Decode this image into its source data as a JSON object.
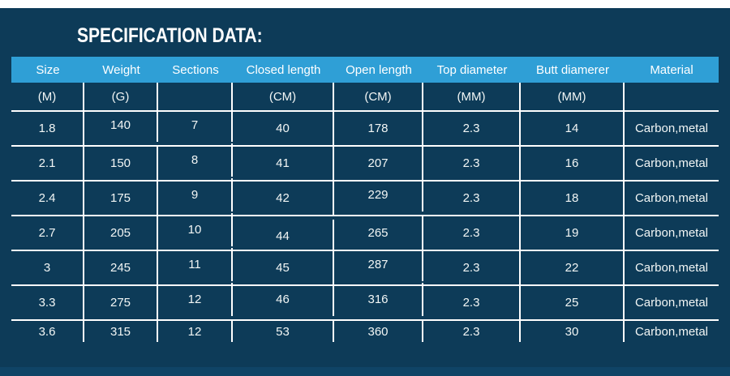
{
  "title": "SPECIFICATION DATA:",
  "colors": {
    "page_background": "#0d3b58",
    "top_strip": "#ffffff",
    "bottom_strip": "#0f4466",
    "header_background": "#2f9fd6",
    "grid_line": "#ffffff",
    "title_text": "#ffffff",
    "cell_text": "#f2f6f5"
  },
  "chart_data": {
    "type": "table",
    "title": "SPECIFICATION DATA:",
    "columns": [
      "Size",
      "Weight",
      "Sections",
      "Closed length",
      "Open length",
      "Top diameter",
      "Butt diamerer",
      "Material"
    ],
    "units": [
      "(M)",
      "(G)",
      "",
      "(CM)",
      "(CM)",
      "(MM)",
      "(MM)",
      ""
    ],
    "rows": [
      [
        "1.8",
        "140",
        "7",
        "40",
        "178",
        "2.3",
        "14",
        "Carbon,metal"
      ],
      [
        "2.1",
        "150",
        "8",
        "41",
        "207",
        "2.3",
        "16",
        "Carbon,metal"
      ],
      [
        "2.4",
        "175",
        "9",
        "42",
        "229",
        "2.3",
        "18",
        "Carbon,metal"
      ],
      [
        "2.7",
        "205",
        "10",
        "44",
        "265",
        "2.3",
        "19",
        "Carbon,metal"
      ],
      [
        "3",
        "245",
        "11",
        "45",
        "287",
        "2.3",
        "22",
        "Carbon,metal"
      ],
      [
        "3.3",
        "275",
        "12",
        "46",
        "316",
        "2.3",
        "25",
        "Carbon,metal"
      ],
      [
        "3.6",
        "315",
        "12",
        "53",
        "360",
        "2.3",
        "30",
        "Carbon,metal"
      ]
    ]
  }
}
